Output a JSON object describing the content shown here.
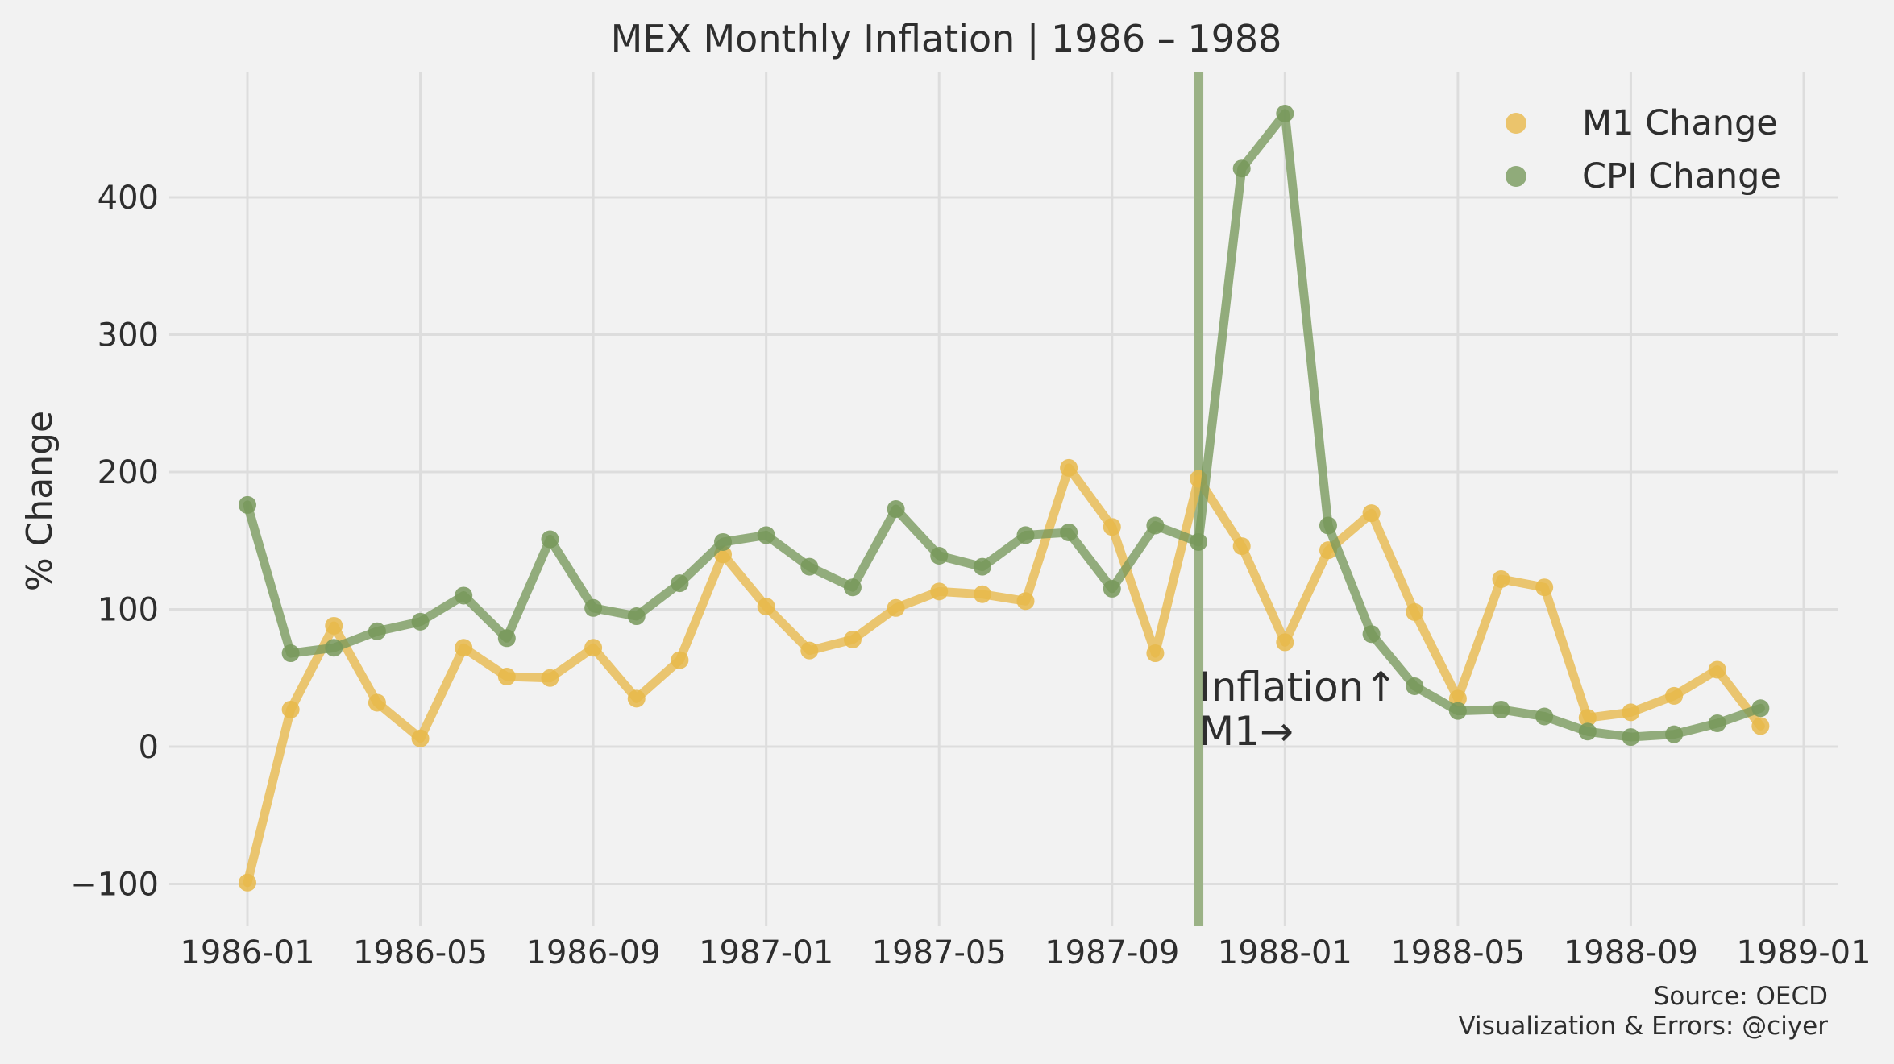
{
  "chart_data": {
    "type": "line",
    "title": "MEX Monthly Inflation | 1986 – 1988",
    "xlabel": "",
    "ylabel": "% Change",
    "ylim": [
      -120,
      490
    ],
    "xlim": [
      "1985-12",
      "1989-01"
    ],
    "yticks": [
      -100,
      0,
      100,
      200,
      300,
      400
    ],
    "xticks": [
      "1986-01",
      "1986-05",
      "1986-09",
      "1987-01",
      "1987-05",
      "1987-09",
      "1988-01",
      "1988-05",
      "1988-09",
      "1989-01"
    ],
    "x": [
      "1986-01",
      "1986-02",
      "1986-03",
      "1986-04",
      "1986-05",
      "1986-06",
      "1986-07",
      "1986-08",
      "1986-09",
      "1986-10",
      "1986-11",
      "1986-12",
      "1987-01",
      "1987-02",
      "1987-03",
      "1987-04",
      "1987-05",
      "1987-06",
      "1987-07",
      "1987-08",
      "1987-09",
      "1987-10",
      "1987-11",
      "1987-12",
      "1988-01",
      "1988-02",
      "1988-03",
      "1988-04",
      "1988-05",
      "1988-06",
      "1988-07",
      "1988-08",
      "1988-09",
      "1988-10",
      "1988-11",
      "1988-12"
    ],
    "series": [
      {
        "name": "M1 Change",
        "color": "#e8b84a",
        "values": [
          -99,
          27,
          88,
          32,
          6,
          72,
          51,
          50,
          72,
          35,
          63,
          140,
          102,
          70,
          78,
          101,
          113,
          111,
          106,
          203,
          160,
          68,
          195,
          146,
          76,
          143,
          170,
          98,
          35,
          122,
          116,
          21,
          25,
          37,
          56,
          15
        ]
      },
      {
        "name": "CPI Change",
        "color": "#77985b",
        "values": [
          176,
          68,
          72,
          84,
          91,
          110,
          79,
          151,
          101,
          95,
          119,
          149,
          154,
          131,
          116,
          173,
          139,
          131,
          154,
          156,
          115,
          161,
          149,
          421,
          461,
          161,
          82,
          44,
          26,
          27,
          22,
          11,
          7,
          9,
          17,
          28
        ]
      }
    ],
    "vline": {
      "x": "1987-11",
      "color": "#9bb286"
    },
    "annotation": {
      "x": "1987-11",
      "y": 14,
      "lines": [
        "Inflation↑",
        "M1→"
      ]
    },
    "legend_position": "top-right",
    "grid": true,
    "footer": [
      "Source: OECD",
      "Visualization & Errors: @ciyer"
    ]
  }
}
